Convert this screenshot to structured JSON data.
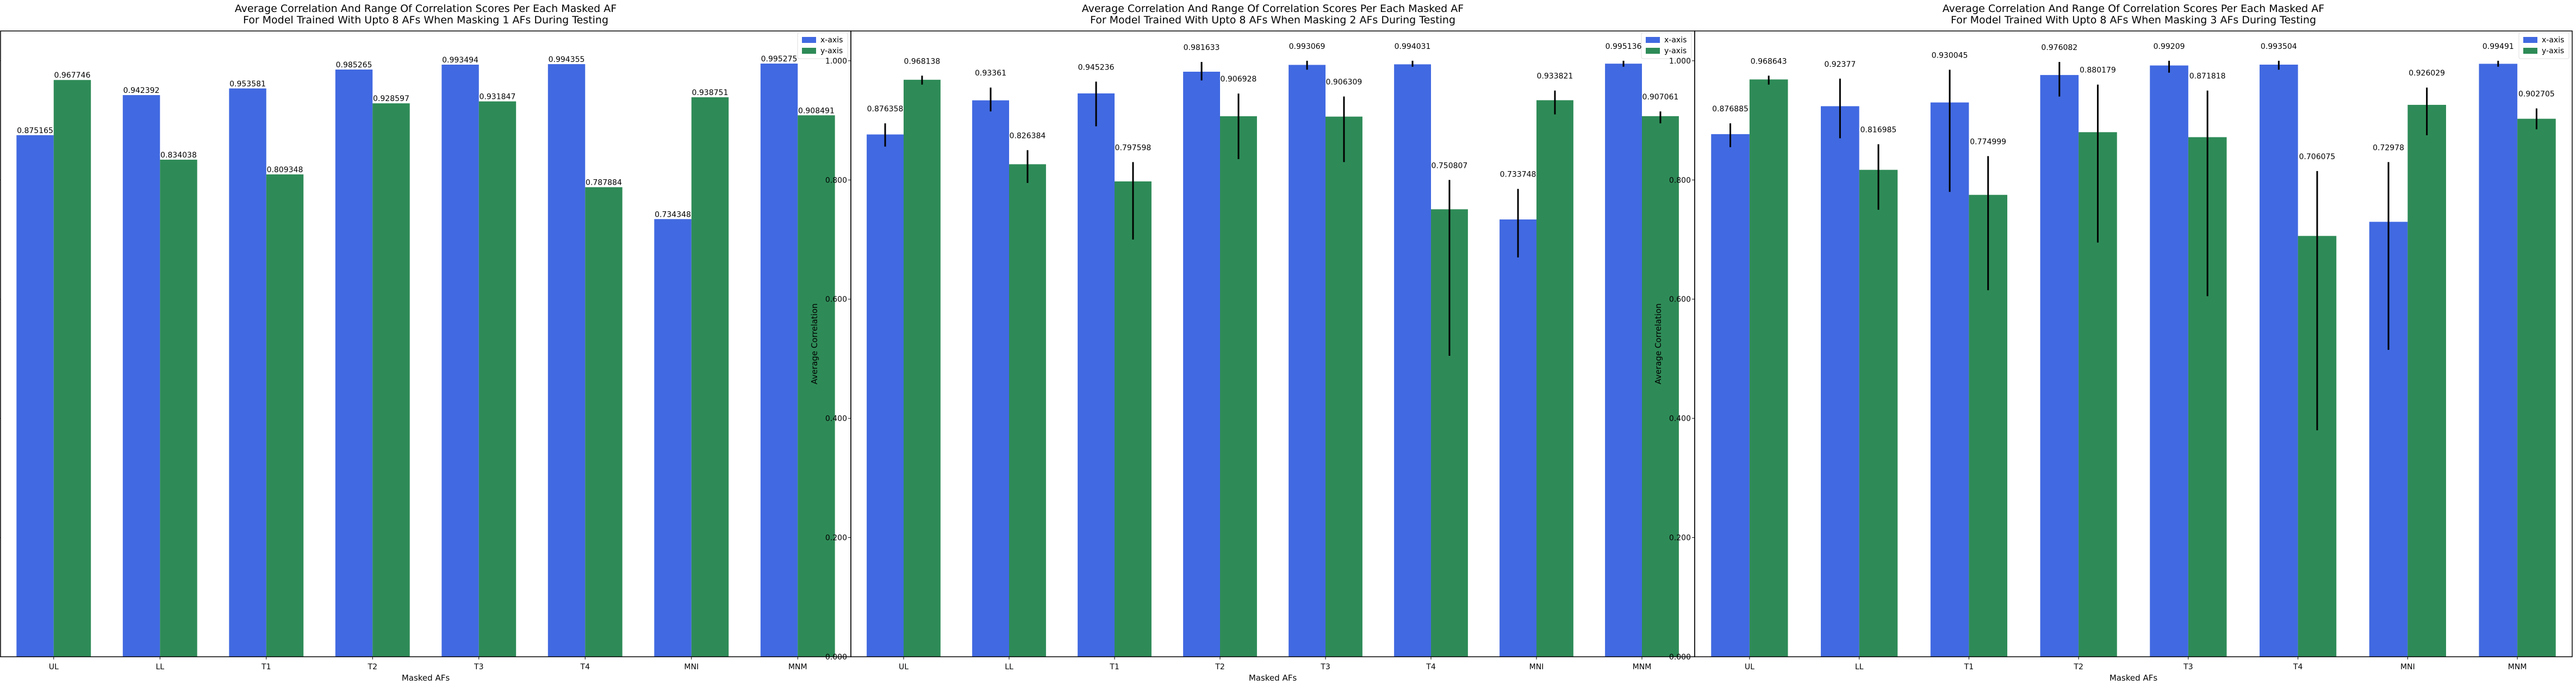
{
  "colors": {
    "x_axis": "#4169E1",
    "y_axis": "#2E8B57",
    "error_bar": "#000000"
  },
  "chart_data": [
    {
      "type": "bar",
      "title": "Average Correlation And Range Of Correlation Scores Per Each Masked AF",
      "subtitle": "For Model Trained With Upto 8 AFs When Masking 1 AFs During Testing",
      "xlabel": "Masked AFs",
      "ylabel": "Average Correlation",
      "ylim": [
        0,
        1.05
      ],
      "yticks": [
        "0.000",
        "0.200",
        "0.400",
        "0.600",
        "0.800",
        "1.000"
      ],
      "categories": [
        "UL",
        "LL",
        "T1",
        "T2",
        "T3",
        "T4",
        "MNI",
        "MNM"
      ],
      "legend": "top-right",
      "series": [
        {
          "name": "x-axis",
          "values": [
            0.875165,
            0.942392,
            0.953581,
            0.985265,
            0.993494,
            0.994355,
            0.734348,
            0.995275
          ],
          "labels": [
            "0.875165",
            "0.942392",
            "0.953581",
            "0.985265",
            "0.993494",
            "0.994355",
            "0.734348",
            "0.995275"
          ],
          "err_low": [
            null,
            null,
            null,
            null,
            null,
            null,
            null,
            null
          ],
          "err_high": [
            null,
            null,
            null,
            null,
            null,
            null,
            null,
            null
          ]
        },
        {
          "name": "y-axis",
          "values": [
            0.967746,
            0.834038,
            0.809348,
            0.928597,
            0.931847,
            0.787884,
            0.938751,
            0.908491
          ],
          "labels": [
            "0.967746",
            "0.834038",
            "0.809348",
            "0.928597",
            "0.931847",
            "0.787884",
            "0.938751",
            "0.908491"
          ],
          "err_low": [
            null,
            null,
            null,
            null,
            null,
            null,
            null,
            null
          ],
          "err_high": [
            null,
            null,
            null,
            null,
            null,
            null,
            null,
            null
          ]
        }
      ]
    },
    {
      "type": "bar",
      "title": "Average Correlation And Range Of Correlation Scores Per Each Masked AF",
      "subtitle": "For Model Trained With Upto 8 AFs When Masking 2 AFs During Testing",
      "xlabel": "Masked AFs",
      "ylabel": "Average Correlation",
      "ylim": [
        0,
        1.05
      ],
      "yticks": [
        "0.000",
        "0.200",
        "0.400",
        "0.600",
        "0.800",
        "1.000"
      ],
      "categories": [
        "UL",
        "LL",
        "T1",
        "T2",
        "T3",
        "T4",
        "MNI",
        "MNM"
      ],
      "legend": "top-right",
      "series": [
        {
          "name": "x-axis",
          "values": [
            0.876358,
            0.93361,
            0.945236,
            0.981633,
            0.993069,
            0.994031,
            0.733748,
            0.995136
          ],
          "labels": [
            "0.876358",
            "0.93361",
            "0.945236",
            "0.981633",
            "0.993069",
            "0.994031",
            "0.733748",
            "0.995136"
          ],
          "err_low": [
            0.856,
            0.915,
            0.89,
            0.967,
            0.985,
            0.99,
            0.67,
            0.99
          ],
          "err_high": [
            0.895,
            0.955,
            0.965,
            0.998,
            1.0,
            1.0,
            0.785,
            1.0
          ]
        },
        {
          "name": "y-axis",
          "values": [
            0.968138,
            0.826384,
            0.797598,
            0.906928,
            0.906309,
            0.750807,
            0.933821,
            0.907061
          ],
          "labels": [
            "0.968138",
            "0.826384",
            "0.797598",
            "0.906928",
            "0.906309",
            "0.750807",
            "0.933821",
            "0.907061"
          ],
          "err_low": [
            0.96,
            0.795,
            0.7,
            0.835,
            0.83,
            0.505,
            0.91,
            0.895
          ],
          "err_high": [
            0.975,
            0.85,
            0.83,
            0.945,
            0.94,
            0.8,
            0.95,
            0.915
          ]
        }
      ]
    },
    {
      "type": "bar",
      "title": "Average Correlation And Range Of Correlation Scores Per Each Masked AF",
      "subtitle": "For Model Trained With Upto 8 AFs When Masking 3 AFs During Testing",
      "xlabel": "Masked AFs",
      "ylabel": "Average Correlation",
      "ylim": [
        0,
        1.05
      ],
      "yticks": [
        "0.000",
        "0.200",
        "0.400",
        "0.600",
        "0.800",
        "1.000"
      ],
      "categories": [
        "UL",
        "LL",
        "T1",
        "T2",
        "T3",
        "T4",
        "MNI",
        "MNM"
      ],
      "legend": "top-right",
      "series": [
        {
          "name": "x-axis",
          "values": [
            0.876885,
            0.92377,
            0.930045,
            0.976082,
            0.99209,
            0.993504,
            0.72978,
            0.99491
          ],
          "labels": [
            "0.876885",
            "0.92377",
            "0.930045",
            "0.976082",
            "0.99209",
            "0.993504",
            "0.72978",
            "0.99491"
          ],
          "err_low": [
            0.855,
            0.87,
            0.78,
            0.94,
            0.98,
            0.985,
            0.515,
            0.99
          ],
          "err_high": [
            0.895,
            0.97,
            0.985,
            0.998,
            1.0,
            1.0,
            0.83,
            1.0
          ]
        },
        {
          "name": "y-axis",
          "values": [
            0.968643,
            0.816985,
            0.774999,
            0.880179,
            0.871818,
            0.706075,
            0.926029,
            0.902705
          ],
          "labels": [
            "0.968643",
            "0.816985",
            "0.774999",
            "0.880179",
            "0.871818",
            "0.706075",
            "0.926029",
            "0.902705"
          ],
          "err_low": [
            0.96,
            0.75,
            0.615,
            0.695,
            0.605,
            0.38,
            0.875,
            0.885
          ],
          "err_high": [
            0.975,
            0.86,
            0.84,
            0.96,
            0.95,
            0.815,
            0.955,
            0.92
          ]
        }
      ]
    }
  ]
}
